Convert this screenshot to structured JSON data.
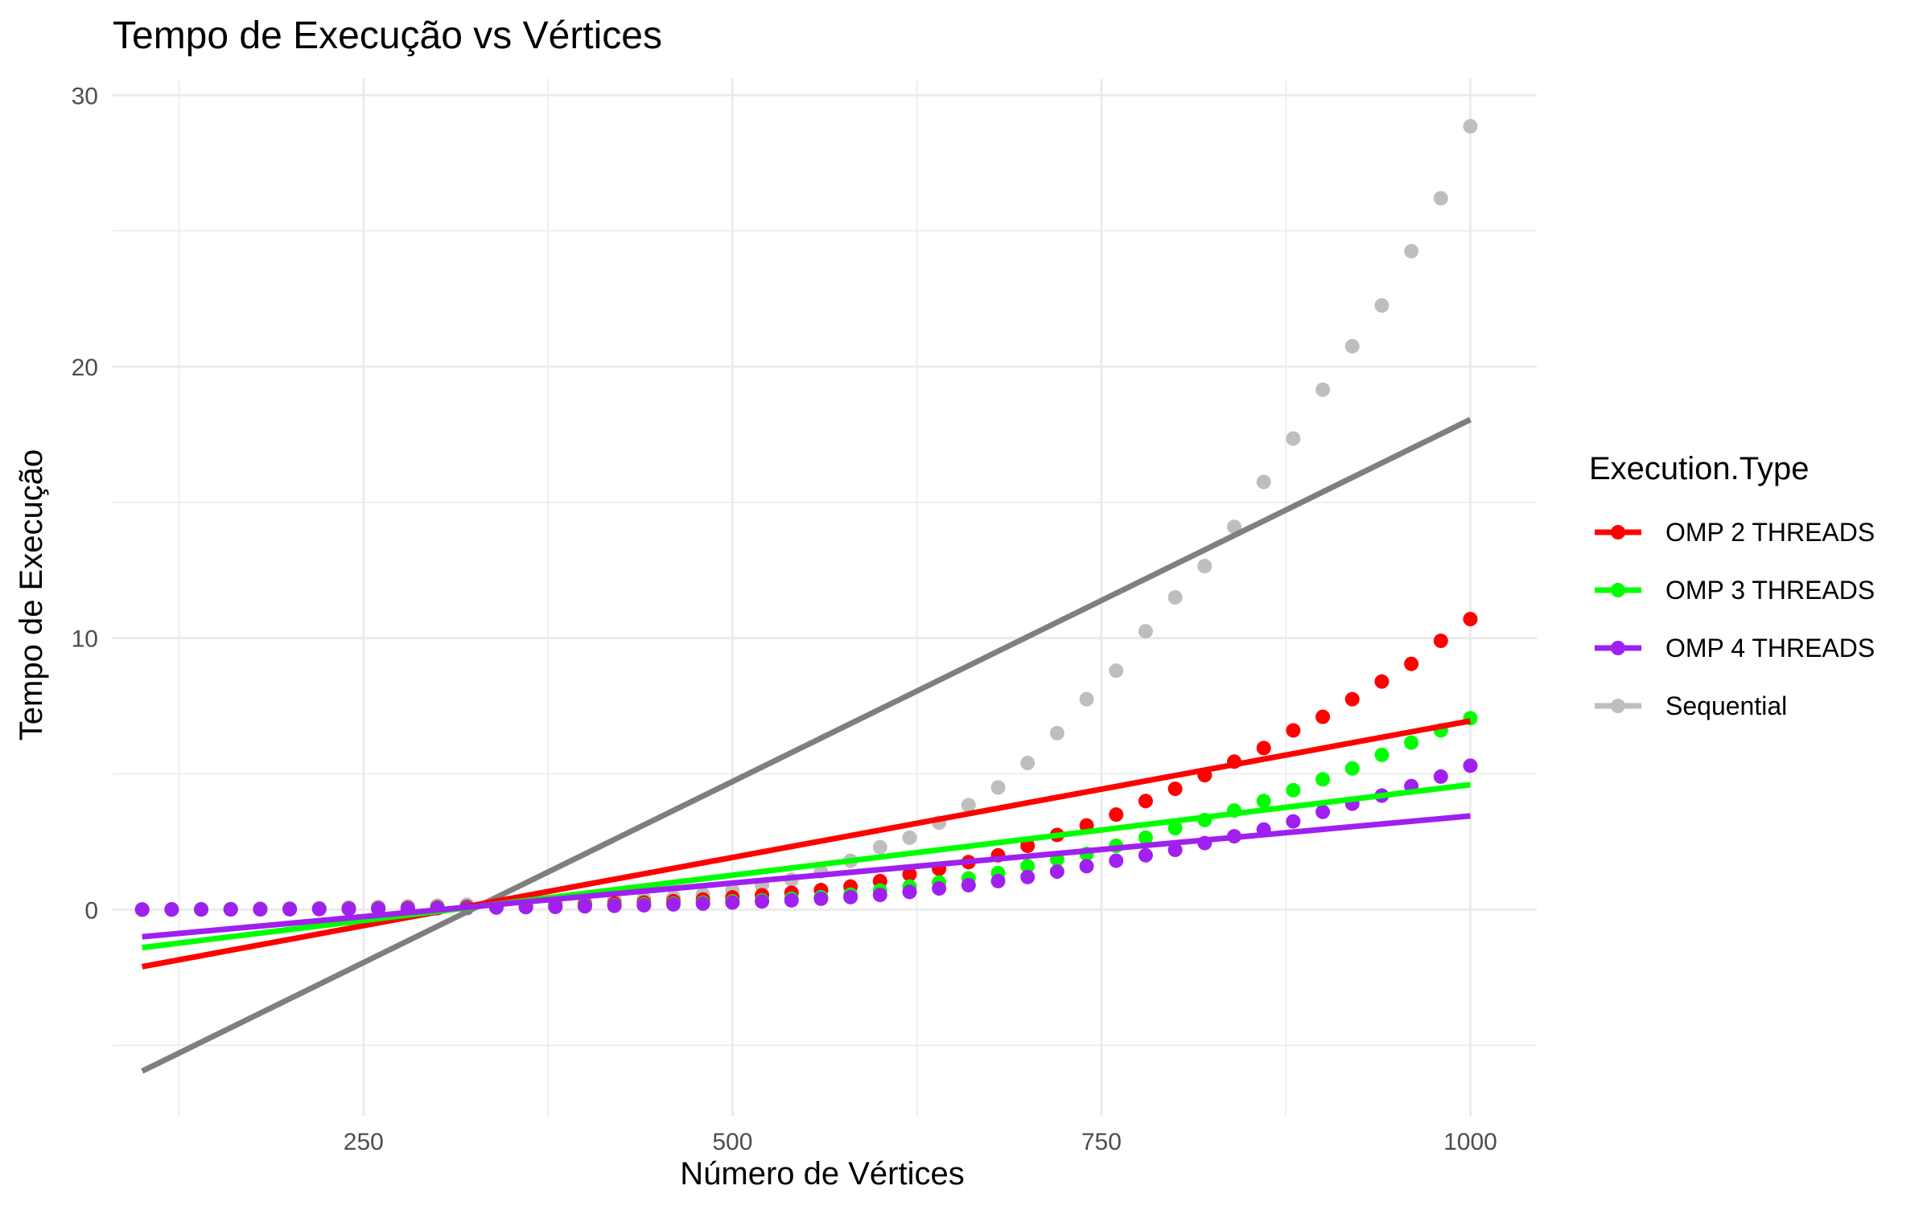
{
  "chart_data": {
    "type": "scatter",
    "title": "Tempo de Execução vs Vértices",
    "xlabel": "Número de Vértices",
    "ylabel": "Tempo de Execução",
    "xlim": [
      80,
      1045
    ],
    "ylim": [
      -7.6,
      30.6
    ],
    "x_ticks": [
      250,
      500,
      750,
      1000
    ],
    "x_tick_labels": [
      "250",
      "500",
      "750",
      "1000"
    ],
    "y_ticks": [
      0,
      10,
      20,
      30
    ],
    "y_tick_labels": [
      "0",
      "10",
      "20",
      "30"
    ],
    "x_minor_ticks": [
      125,
      375,
      625,
      875
    ],
    "y_minor_ticks": [
      -5,
      5,
      15,
      25
    ],
    "grid": true,
    "legend_title": "Execution.Type",
    "legend_position": "right",
    "x": [
      100,
      120,
      140,
      160,
      180,
      200,
      220,
      240,
      260,
      280,
      300,
      320,
      340,
      360,
      380,
      400,
      420,
      440,
      460,
      480,
      500,
      520,
      540,
      560,
      580,
      600,
      620,
      640,
      660,
      680,
      700,
      720,
      740,
      760,
      780,
      800,
      820,
      840,
      860,
      880,
      900,
      920,
      940,
      960,
      980,
      1000
    ],
    "series": [
      {
        "name": "OMP 2 THREADS",
        "color": "#ff0000",
        "values": [
          0.003,
          0.005,
          0.008,
          0.012,
          0.017,
          0.022,
          0.03,
          0.04,
          0.05,
          0.065,
          0.08,
          0.1,
          0.12,
          0.14,
          0.16,
          0.19,
          0.22,
          0.26,
          0.31,
          0.37,
          0.45,
          0.53,
          0.62,
          0.72,
          0.85,
          1.05,
          1.3,
          1.5,
          1.75,
          2.0,
          2.35,
          2.75,
          3.1,
          3.5,
          4.0,
          4.45,
          4.95,
          5.45,
          5.95,
          6.6,
          7.1,
          7.75,
          8.4,
          9.05,
          9.9,
          10.7
        ],
        "fit": {
          "x0": 100,
          "y0": -2.1,
          "x1": 1000,
          "y1": 6.95
        }
      },
      {
        "name": "OMP 3 THREADS",
        "color": "#00ff00",
        "values": [
          0.002,
          0.004,
          0.006,
          0.009,
          0.013,
          0.017,
          0.023,
          0.03,
          0.038,
          0.05,
          0.06,
          0.075,
          0.09,
          0.1,
          0.12,
          0.14,
          0.16,
          0.19,
          0.22,
          0.26,
          0.3,
          0.34,
          0.4,
          0.46,
          0.55,
          0.7,
          0.85,
          1.0,
          1.15,
          1.35,
          1.6,
          1.85,
          2.05,
          2.35,
          2.65,
          3.0,
          3.3,
          3.65,
          4.0,
          4.4,
          4.8,
          5.2,
          5.7,
          6.15,
          6.6,
          7.05
        ],
        "fit": {
          "x0": 100,
          "y0": -1.4,
          "x1": 1000,
          "y1": 4.6
        }
      },
      {
        "name": "OMP 4 THREADS",
        "color": "#a020f0",
        "values": [
          0.002,
          0.003,
          0.005,
          0.007,
          0.01,
          0.014,
          0.018,
          0.024,
          0.03,
          0.04,
          0.05,
          0.06,
          0.075,
          0.09,
          0.1,
          0.12,
          0.14,
          0.16,
          0.19,
          0.22,
          0.26,
          0.3,
          0.34,
          0.4,
          0.46,
          0.54,
          0.65,
          0.78,
          0.9,
          1.05,
          1.2,
          1.4,
          1.6,
          1.8,
          2.0,
          2.2,
          2.45,
          2.7,
          2.95,
          3.25,
          3.6,
          3.9,
          4.2,
          4.55,
          4.9,
          5.3
        ],
        "fit": {
          "x0": 100,
          "y0": -1.0,
          "x1": 1000,
          "y1": 3.45
        }
      },
      {
        "name": "Sequential",
        "color": "#bebebe",
        "fit_color": "#7f7f7f",
        "values": [
          0.01,
          0.015,
          0.02,
          0.03,
          0.04,
          0.05,
          0.06,
          0.08,
          0.1,
          0.12,
          0.15,
          0.18,
          0.2,
          0.23,
          0.26,
          0.3,
          0.35,
          0.4,
          0.45,
          0.55,
          0.7,
          0.9,
          1.1,
          1.4,
          1.8,
          2.3,
          2.65,
          3.2,
          3.85,
          4.5,
          5.4,
          6.5,
          7.75,
          8.8,
          10.25,
          11.5,
          12.65,
          14.1,
          15.75,
          17.35,
          19.15,
          20.75,
          22.25,
          24.25,
          26.2,
          28.85
        ],
        "fit": {
          "x0": 100,
          "y0": -5.95,
          "x1": 1000,
          "y1": 18.05
        }
      }
    ]
  }
}
